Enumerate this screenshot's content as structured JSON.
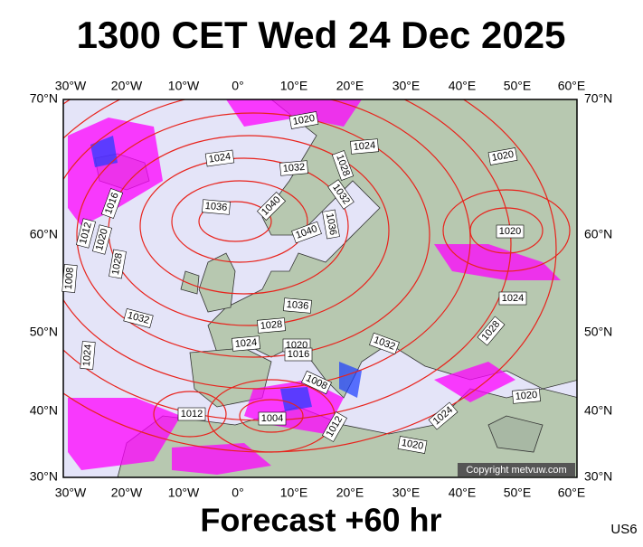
{
  "header": {
    "title": "1300 CET Wed 24 Dec 2025"
  },
  "axes": {
    "longitudes": [
      "30°W",
      "20°W",
      "10°W",
      "0°",
      "10°E",
      "20°E",
      "30°E",
      "40°E",
      "50°E",
      "60°E"
    ],
    "latitudes": [
      "70°N",
      "60°N",
      "50°N",
      "40°N",
      "30°N"
    ]
  },
  "isobar_labels": [
    "1020",
    "1024",
    "1020",
    "1024",
    "1028",
    "1032",
    "1032",
    "1016",
    "1036",
    "1040",
    "1036",
    "1012",
    "1020",
    "1040",
    "1020",
    "1028",
    "1008",
    "1024",
    "1036",
    "1032",
    "1028",
    "1028",
    "1024",
    "1020",
    "1016",
    "1032",
    "1024",
    "1008",
    "1020",
    "1012",
    "1004",
    "1024",
    "1012",
    "1020"
  ],
  "copyright": "Copyright metvuw.com",
  "footer": {
    "forecast": "Forecast +60 hr",
    "code": "US6"
  }
}
